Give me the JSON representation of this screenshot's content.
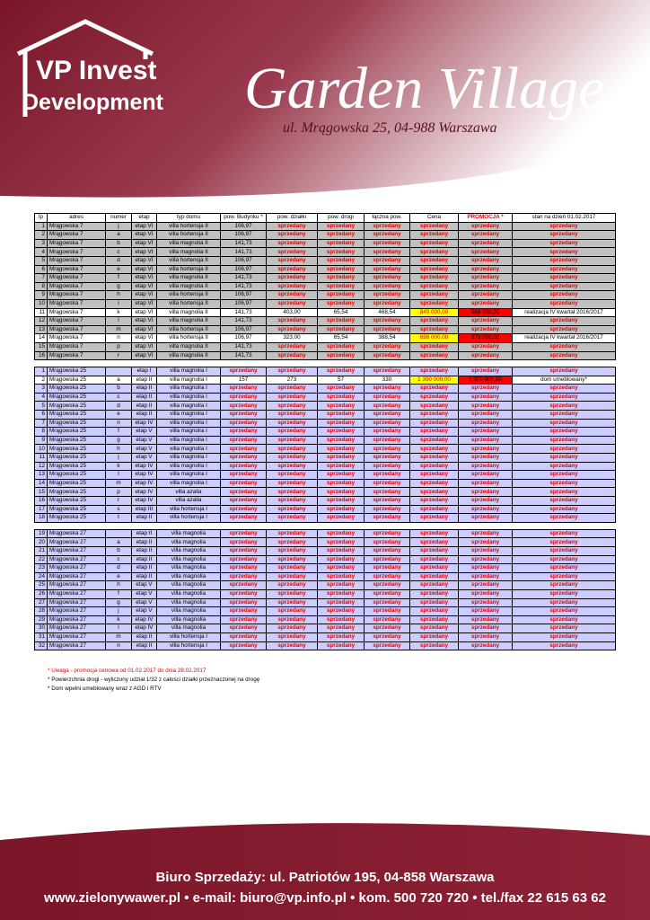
{
  "header": {
    "logo_top": "VP Invest",
    "logo_bottom": "Development",
    "title": "Garden Village",
    "address": "ul. Mrągowska 25, 04-988 Warszawa"
  },
  "table": {
    "columns": [
      "lp",
      "adres",
      "numer",
      "etap",
      "typ domu",
      "pow. Budynku *",
      "pow. działki",
      "pow. drogi",
      "łączna pow.",
      "Cena",
      "PROMOCJA *",
      "stan na dzień 01.02.2017"
    ],
    "groups": [
      {
        "rows": [
          [
            "1",
            "Mrągowska 7",
            "j",
            "etap VI",
            "villa hortensja II",
            "106,97",
            "sprzedany",
            "sprzedany",
            "sprzedany",
            "sprzedany",
            "sprzedany",
            "sprzedany"
          ],
          [
            "2",
            "Mrągowska 7",
            "a",
            "etap VI",
            "villa hortensja II",
            "106,97",
            "sprzedany",
            "sprzedany",
            "sprzedany",
            "sprzedany",
            "sprzedany",
            "sprzedany"
          ],
          [
            "3",
            "Mrągowska 7",
            "b",
            "etap VI",
            "villa magnolia II",
            "141,73",
            "sprzedany",
            "sprzedany",
            "sprzedany",
            "sprzedany",
            "sprzedany",
            "sprzedany"
          ],
          [
            "4",
            "Mrągowska 7",
            "c",
            "etap VI",
            "villa magnolia II",
            "141,73",
            "sprzedany",
            "sprzedany",
            "sprzedany",
            "sprzedany",
            "sprzedany",
            "sprzedany"
          ],
          [
            "5",
            "Mrągowska 7",
            "d",
            "etap VI",
            "villa hortensja II",
            "106,97",
            "sprzedany",
            "sprzedany",
            "sprzedany",
            "sprzedany",
            "sprzedany",
            "sprzedany"
          ],
          [
            "6",
            "Mrągowska 7",
            "e",
            "etap VI",
            "villa hortensja II",
            "106,97",
            "sprzedany",
            "sprzedany",
            "sprzedany",
            "sprzedany",
            "sprzedany",
            "sprzedany"
          ],
          [
            "7",
            "Mrągowska 7",
            "f",
            "etap VI",
            "villa magnolia II",
            "141,73",
            "sprzedany",
            "sprzedany",
            "sprzedany",
            "sprzedany",
            "sprzedany",
            "sprzedany"
          ],
          [
            "8",
            "Mrągowska 7",
            "g",
            "etap VI",
            "villa magnolia II",
            "141,73",
            "sprzedany",
            "sprzedany",
            "sprzedany",
            "sprzedany",
            "sprzedany",
            "sprzedany"
          ],
          [
            "9",
            "Mrągowska 7",
            "h",
            "etap VI",
            "villa hortensja II",
            "106,97",
            "sprzedany",
            "sprzedany",
            "sprzedany",
            "sprzedany",
            "sprzedany",
            "sprzedany"
          ],
          [
            "10",
            "Mrągowska 7",
            "i",
            "etap VI",
            "villa hortensja II",
            "106,97",
            "sprzedany",
            "sprzedany",
            "sprzedany",
            "sprzedany",
            "sprzedany",
            "sprzedany"
          ],
          [
            "11",
            "Mrągowska 7",
            "k",
            "etap VI",
            "villa magnolia II",
            "141,73",
            "403,00",
            "65,54",
            "468,54",
            "849 000,00",
            "569 000,00",
            "realizacja IV kwartał 2016/2017"
          ],
          [
            "12",
            "Mrągowska 7",
            "l",
            "etap VI",
            "villa magnolia II",
            "141,73",
            "sprzedany",
            "sprzedany",
            "sprzedany",
            "sprzedany",
            "sprzedany",
            "sprzedany"
          ],
          [
            "13",
            "Mrągowska 7",
            "m",
            "etap VI",
            "villa hortensja II",
            "106,97",
            "sprzedany",
            "sprzedany",
            "sprzedany",
            "sprzedany",
            "sprzedany",
            "sprzedany"
          ],
          [
            "14",
            "Mrągowska 7",
            "n",
            "etap VI",
            "villa hortensja II",
            "106,97",
            "323,00",
            "65,54",
            "388,54",
            "698 000,00",
            "379 000,00",
            "realizacja IV kwartał 2016/2017"
          ],
          [
            "15",
            "Mrągowska 7",
            "p",
            "etap VI",
            "villa magnolia II",
            "141,73",
            "sprzedany",
            "sprzedany",
            "sprzedany",
            "sprzedany",
            "sprzedany",
            "sprzedany"
          ],
          [
            "16",
            "Mrągowska 7",
            "r",
            "etap VI",
            "villa magnolia II",
            "141,73",
            "sprzedany",
            "sprzedany",
            "sprzedany",
            "sprzedany",
            "sprzedany",
            "sprzedany"
          ]
        ]
      },
      {
        "rows": [
          [
            "1",
            "Mrągowska 25",
            null,
            "etap I",
            "villa magnolia I",
            "sprzedany",
            "sprzedany",
            "sprzedany",
            "sprzedany",
            "sprzedany",
            "sprzedany",
            "sprzedany"
          ],
          [
            "2",
            "Mrągowska 25",
            "a",
            "etap II",
            "villa magnolia I",
            "157",
            "273",
            "57",
            "330",
            "1 300 000,00",
            "1 000 000,00",
            "dom umeblowany*"
          ],
          [
            "3",
            "Mrągowska 25",
            "b",
            "etap II",
            "villa magnolia I",
            "sprzedany",
            "sprzedany",
            "sprzedany",
            "sprzedany",
            "sprzedany",
            "sprzedany",
            "sprzedany"
          ],
          [
            "4",
            "Mrągowska 25",
            "c",
            "etap II",
            "villa magnolia I",
            "sprzedany",
            "sprzedany",
            "sprzedany",
            "sprzedany",
            "sprzedany",
            "sprzedany",
            "sprzedany"
          ],
          [
            "5",
            "Mrągowska 25",
            "d",
            "etap II",
            "villa magnolia I",
            "sprzedany",
            "sprzedany",
            "sprzedany",
            "sprzedany",
            "sprzedany",
            "sprzedany",
            "sprzedany"
          ],
          [
            "6",
            "Mrągowska 25",
            "e",
            "etap II",
            "villa magnolia I",
            "sprzedany",
            "sprzedany",
            "sprzedany",
            "sprzedany",
            "sprzedany",
            "sprzedany",
            "sprzedany"
          ],
          [
            "7",
            "Mrągowska 25",
            "n",
            "etap IV",
            "villa magnolia I",
            "sprzedany",
            "sprzedany",
            "sprzedany",
            "sprzedany",
            "sprzedany",
            "sprzedany",
            "sprzedany"
          ],
          [
            "8",
            "Mrągowska 25",
            "f",
            "etap V",
            "villa magnolia I",
            "sprzedany",
            "sprzedany",
            "sprzedany",
            "sprzedany",
            "sprzedany",
            "sprzedany",
            "sprzedany"
          ],
          [
            "9",
            "Mrągowska 25",
            "g",
            "etap V",
            "villa magnolia I",
            "sprzedany",
            "sprzedany",
            "sprzedany",
            "sprzedany",
            "sprzedany",
            "sprzedany",
            "sprzedany"
          ],
          [
            "10",
            "Mrągowska 25",
            "h",
            "etap V",
            "villa magnolia I",
            "sprzedany",
            "sprzedany",
            "sprzedany",
            "sprzedany",
            "sprzedany",
            "sprzedany",
            "sprzedany"
          ],
          [
            "11",
            "Mrągowska 25",
            "j",
            "etap V",
            "villa magnolia I",
            "sprzedany",
            "sprzedany",
            "sprzedany",
            "sprzedany",
            "sprzedany",
            "sprzedany",
            "sprzedany"
          ],
          [
            "12",
            "Mrągowska 25",
            "k",
            "etap IV",
            "villa magnolia I",
            "sprzedany",
            "sprzedany",
            "sprzedany",
            "sprzedany",
            "sprzedany",
            "sprzedany",
            "sprzedany"
          ],
          [
            "13",
            "Mrągowska 25",
            "l",
            "etap IV",
            "villa magnolia I",
            "sprzedany",
            "sprzedany",
            "sprzedany",
            "sprzedany",
            "sprzedany",
            "sprzedany",
            "sprzedany"
          ],
          [
            "14",
            "Mrągowska 25",
            "m",
            "etap IV",
            "villa magnolia I",
            "sprzedany",
            "sprzedany",
            "sprzedany",
            "sprzedany",
            "sprzedany",
            "sprzedany",
            "sprzedany"
          ],
          [
            "15",
            "Mrągowska 25",
            "p",
            "etap IV",
            "villa azalia",
            "sprzedany",
            "sprzedany",
            "sprzedany",
            "sprzedany",
            "sprzedany",
            "sprzedany",
            "sprzedany"
          ],
          [
            "16",
            "Mrągowska 25",
            "r",
            "etap IV",
            "villa azalia",
            "sprzedany",
            "sprzedany",
            "sprzedany",
            "sprzedany",
            "sprzedany",
            "sprzedany",
            "sprzedany"
          ],
          [
            "17",
            "Mrągowska 25",
            "s",
            "etap III",
            "villa hortensja I",
            "sprzedany",
            "sprzedany",
            "sprzedany",
            "sprzedany",
            "sprzedany",
            "sprzedany",
            "sprzedany"
          ],
          [
            "18",
            "Mrągowska 25",
            "t",
            "etap II",
            "villa hortensja I",
            "sprzedany",
            "sprzedany",
            "sprzedany",
            "sprzedany",
            "sprzedany",
            "sprzedany",
            "sprzedany"
          ]
        ]
      },
      {
        "rows": [
          [
            "19",
            "Mrągowska 27",
            null,
            "etap II",
            "villa magnolia",
            "sprzedany",
            "sprzedany",
            "sprzedany",
            "sprzedany",
            "sprzedany",
            "sprzedany",
            "sprzedany"
          ],
          [
            "20",
            "Mrągowska 27",
            "a",
            "etap II",
            "villa magnolia",
            "sprzedany",
            "sprzedany",
            "sprzedany",
            "sprzedany",
            "sprzedany",
            "sprzedany",
            "sprzedany"
          ],
          [
            "21",
            "Mrągowska 27",
            "b",
            "etap II",
            "villa magnolia",
            "sprzedany",
            "sprzedany",
            "sprzedany",
            "sprzedany",
            "sprzedany",
            "sprzedany",
            "sprzedany"
          ],
          [
            "22",
            "Mrągowska 27",
            "c",
            "etap II",
            "villa magnolia",
            "sprzedany",
            "sprzedany",
            "sprzedany",
            "sprzedany",
            "sprzedany",
            "sprzedany",
            "sprzedany"
          ],
          [
            "23",
            "Mrągowska 27",
            "d",
            "etap II",
            "villa magnolia",
            "sprzedany",
            "sprzedany",
            "sprzedany",
            "sprzedany",
            "sprzedany",
            "sprzedany",
            "sprzedany"
          ],
          [
            "24",
            "Mrągowska 27",
            "e",
            "etap II",
            "villa magnolia",
            "sprzedany",
            "sprzedany",
            "sprzedany",
            "sprzedany",
            "sprzedany",
            "sprzedany",
            "sprzedany"
          ],
          [
            "25",
            "Mrągowska 27",
            "h",
            "etap V",
            "villa magnolia",
            "sprzedany",
            "sprzedany",
            "sprzedany",
            "sprzedany",
            "sprzedany",
            "sprzedany",
            "sprzedany"
          ],
          [
            "26",
            "Mrągowska 27",
            "f",
            "etap V",
            "villa magnolia",
            "sprzedany",
            "sprzedany",
            "sprzedany",
            "sprzedany",
            "sprzedany",
            "sprzedany",
            "sprzedany"
          ],
          [
            "27",
            "Mrągowska 27",
            "g",
            "etap V",
            "villa magnolia",
            "sprzedany",
            "sprzedany",
            "sprzedany",
            "sprzedany",
            "sprzedany",
            "sprzedany",
            "sprzedany"
          ],
          [
            "28",
            "Mrągowska 27",
            "j",
            "etap V",
            "villa magnolia",
            "sprzedany",
            "sprzedany",
            "sprzedany",
            "sprzedany",
            "sprzedany",
            "sprzedany",
            "sprzedany"
          ],
          [
            "29",
            "Mrągowska 27",
            "k",
            "etap IV",
            "villa magnolia",
            "sprzedany",
            "sprzedany",
            "sprzedany",
            "sprzedany",
            "sprzedany",
            "sprzedany",
            "sprzedany"
          ],
          [
            "30",
            "Mrągowska 27",
            "l",
            "etap IV",
            "villa magnolia",
            "sprzedany",
            "sprzedany",
            "sprzedany",
            "sprzedany",
            "sprzedany",
            "sprzedany",
            "sprzedany"
          ],
          [
            "31",
            "Mrągowska 27",
            "m",
            "etap II",
            "villa hortensja I",
            "sprzedany",
            "sprzedany",
            "sprzedany",
            "sprzedany",
            "sprzedany",
            "sprzedany",
            "sprzedany"
          ],
          [
            "32",
            "Mrągowska 27",
            "n",
            "etap II",
            "villa hortensja I",
            "sprzedany",
            "sprzedany",
            "sprzedany",
            "sprzedany",
            "sprzedany",
            "sprzedany",
            "sprzedany"
          ]
        ]
      }
    ]
  },
  "notes": [
    "* Uwaga - promocja cenowa od 01.02.2017 do dnia 28.02.2017",
    "* Powierzchnia drogi - wyliczony udział 1/32 z całości działki przeznaczonej na drogę",
    "* Dom wpełni umeblowany wraz z AGD i RTV"
  ],
  "footer": {
    "office": "Biuro Sprzedaży: ul. Patriotów 195, 04-858 Warszawa",
    "contact": "www.zielonywawer.pl • e-mail: biuro@vp.info.pl • kom. 500 720 720 • tel./fax 22 615 63 62"
  }
}
